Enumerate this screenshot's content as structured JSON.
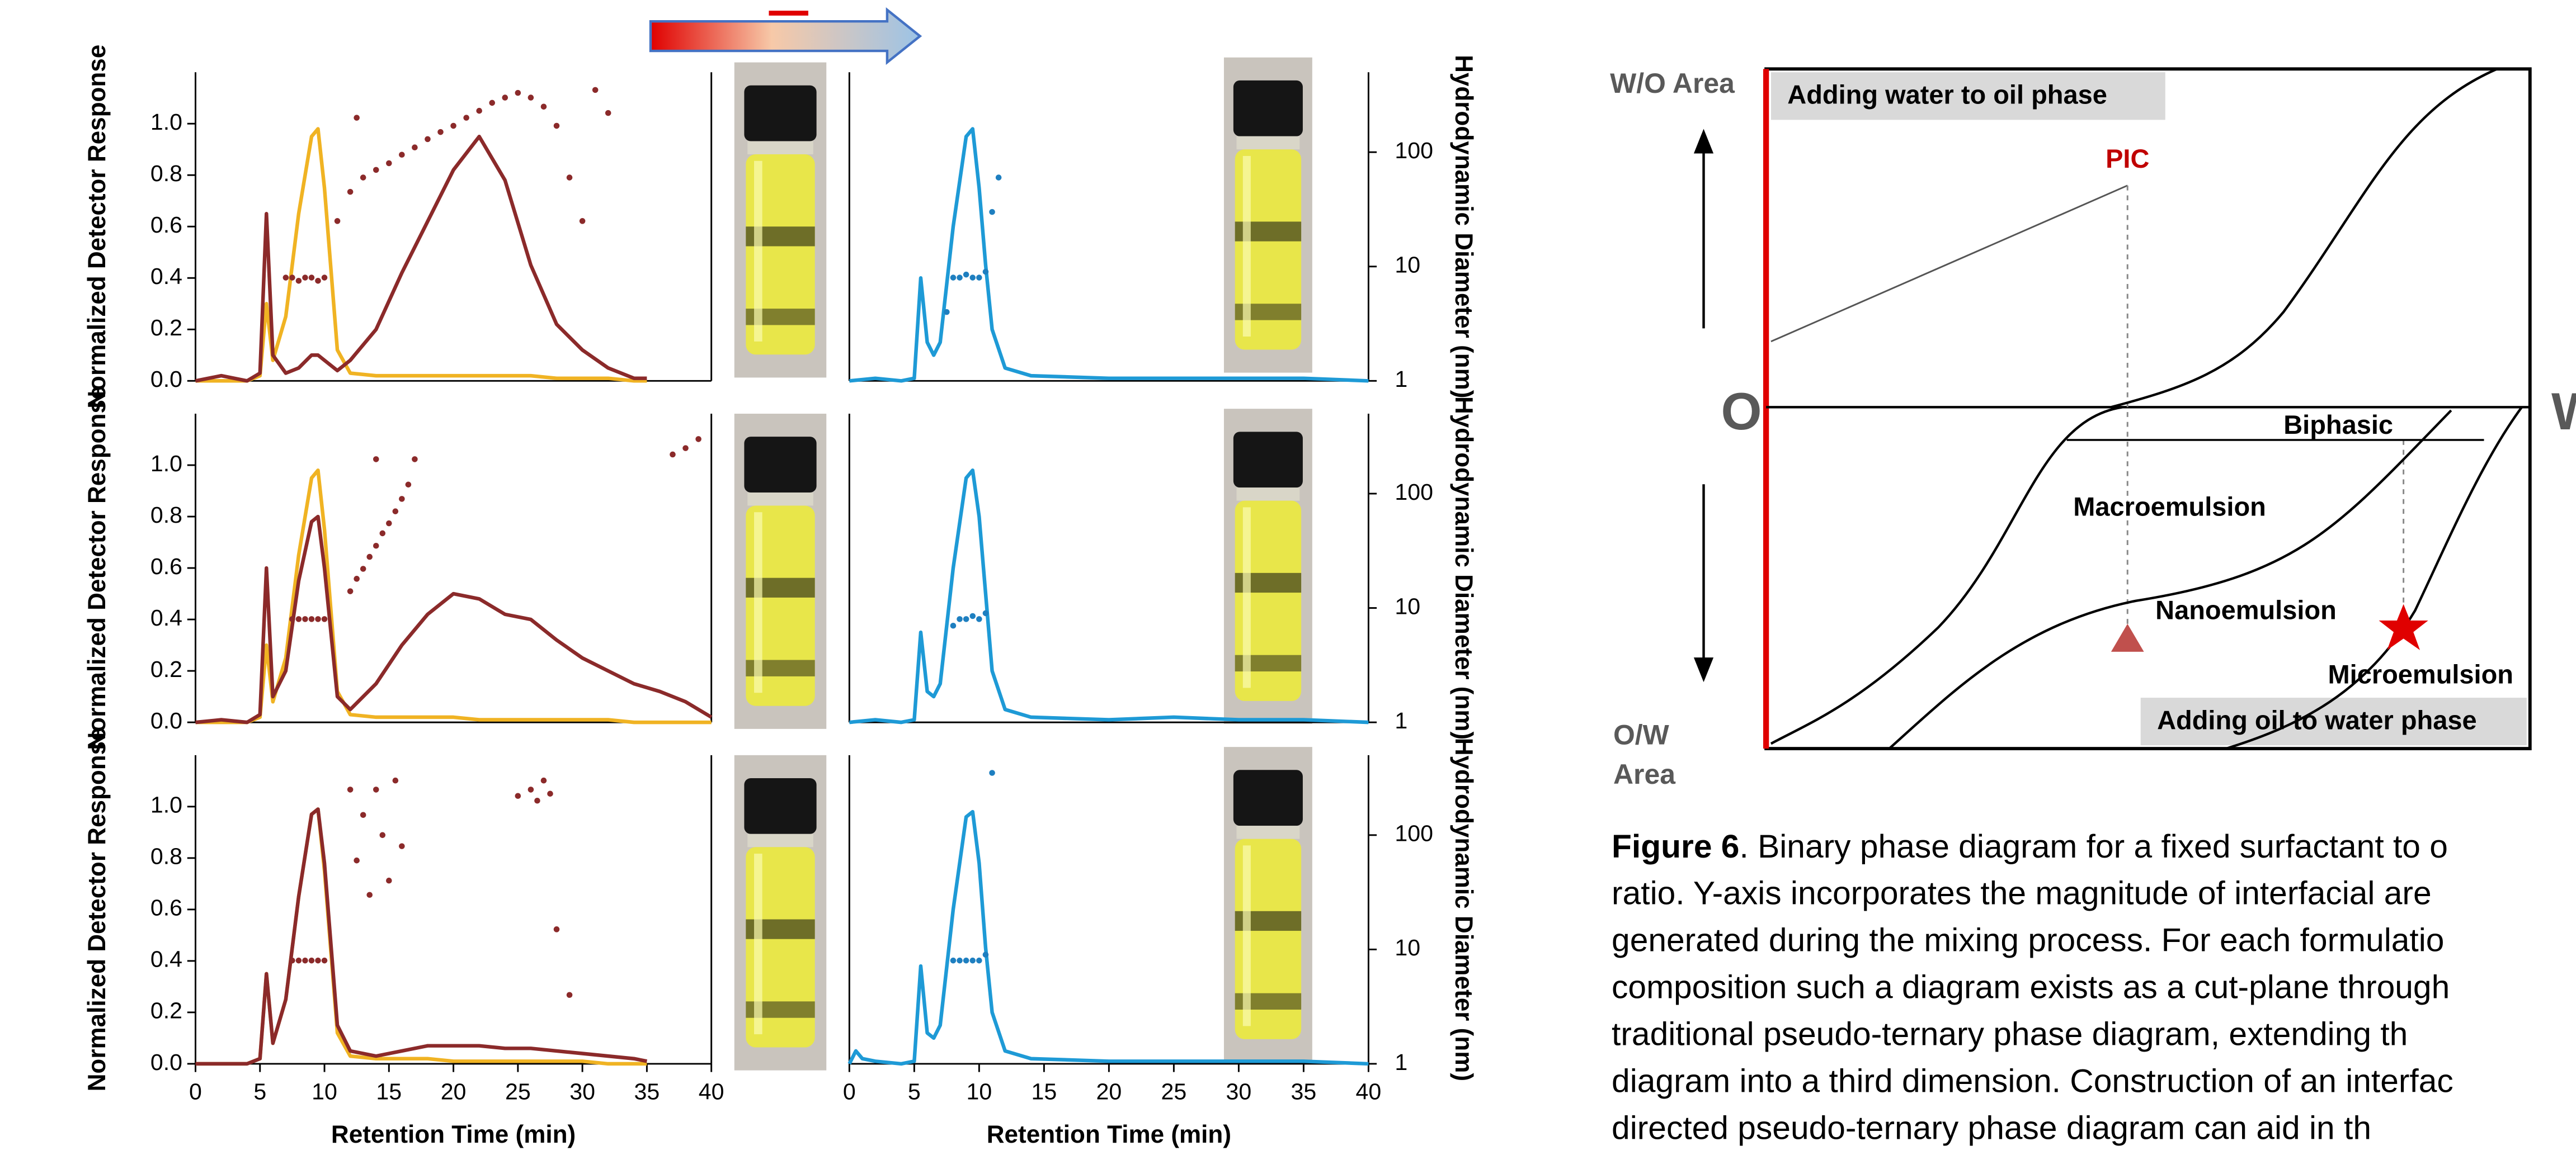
{
  "chart_data": [
    {
      "type": "line",
      "ylabel": "Normalized Detector Response",
      "xlim": [
        0,
        40
      ],
      "ylim": [
        0,
        1.2
      ],
      "yticks": [
        {
          "value": 0,
          "label": "0.0"
        },
        0.2,
        0.4,
        0.6,
        0.8,
        {
          "value": 1,
          "label": "1.0"
        }
      ],
      "y2lim": [
        1,
        500
      ],
      "y2log": true,
      "x": [
        0,
        2,
        4,
        5,
        5.5,
        6,
        7,
        8,
        9,
        9.5,
        10,
        11,
        12,
        14,
        16,
        18,
        20,
        22,
        24,
        26,
        28,
        30,
        32,
        34,
        35
      ],
      "series": [
        {
          "type": "line",
          "color": "#f0b323",
          "values": [
            0,
            0,
            0,
            0.02,
            0.3,
            0.08,
            0.25,
            0.65,
            0.95,
            0.98,
            0.75,
            0.12,
            0.03,
            0.02,
            0.02,
            0.02,
            0.02,
            0.02,
            0.02,
            0.02,
            0.01,
            0.01,
            0.01,
            0,
            0
          ]
        },
        {
          "type": "line",
          "color": "#8b2a2a",
          "values": [
            0,
            0.02,
            0,
            0.03,
            0.65,
            0.1,
            0.03,
            0.05,
            0.1,
            0.1,
            0.08,
            0.04,
            0.08,
            0.2,
            0.42,
            0.62,
            0.82,
            0.95,
            0.78,
            0.45,
            0.22,
            0.12,
            0.05,
            0.01,
            0.01
          ]
        },
        {
          "type": "scatter",
          "axis": "y2",
          "color": "#8b2a2a",
          "x": [
            7,
            7.5,
            8,
            8.5,
            9,
            9.5,
            10,
            11,
            12,
            12.5,
            13,
            14,
            15,
            16,
            17,
            18,
            19,
            20,
            21,
            22,
            23,
            24,
            25,
            26,
            27,
            28,
            29,
            30,
            31,
            32
          ],
          "values": [
            8,
            8,
            7.5,
            8,
            8,
            7.5,
            8,
            25,
            45,
            200,
            60,
            70,
            80,
            95,
            110,
            130,
            150,
            170,
            200,
            230,
            270,
            300,
            330,
            300,
            250,
            170,
            60,
            25,
            350,
            220
          ]
        }
      ]
    },
    {
      "type": "line",
      "y2label": "Hydrodynamic Diameter (nm)",
      "xlim": [
        0,
        40
      ],
      "ylim": [
        0,
        1.2
      ],
      "y2lim": [
        1,
        500
      ],
      "y2log": true,
      "y2ticks": [
        1,
        10,
        100
      ],
      "x": [
        0,
        2,
        4,
        5,
        5.5,
        6,
        6.5,
        7,
        8,
        9,
        9.5,
        10,
        10.5,
        11,
        12,
        14,
        20,
        25,
        30,
        35,
        40
      ],
      "series": [
        {
          "type": "line",
          "color": "#1e9ad6",
          "values": [
            0,
            0.01,
            0,
            0.01,
            0.4,
            0.15,
            0.1,
            0.15,
            0.6,
            0.95,
            0.98,
            0.75,
            0.45,
            0.2,
            0.05,
            0.02,
            0.01,
            0.01,
            0.01,
            0.01,
            0
          ]
        },
        {
          "type": "scatter",
          "axis": "y2",
          "color": "#1e7fc0",
          "x": [
            7.5,
            8,
            8.5,
            9,
            9.5,
            10,
            10.5,
            11,
            11.5
          ],
          "values": [
            4,
            8,
            8,
            8.5,
            8,
            8,
            9,
            30,
            60
          ]
        }
      ]
    },
    {
      "type": "line",
      "ylabel": "Normalized Detector Response",
      "xlim": [
        0,
        40
      ],
      "ylim": [
        0,
        1.2
      ],
      "yticks": [
        {
          "value": 0,
          "label": "0.0"
        },
        0.2,
        0.4,
        0.6,
        0.8,
        {
          "value": 1,
          "label": "1.0"
        }
      ],
      "y2lim": [
        1,
        500
      ],
      "y2log": true,
      "x": [
        0,
        2,
        4,
        5,
        5.5,
        6,
        7,
        8,
        9,
        9.5,
        10,
        11,
        12,
        14,
        16,
        18,
        20,
        22,
        24,
        26,
        28,
        30,
        32,
        34,
        36,
        38,
        40
      ],
      "series": [
        {
          "type": "line",
          "color": "#f0b323",
          "values": [
            0,
            0,
            0,
            0.02,
            0.3,
            0.08,
            0.25,
            0.65,
            0.95,
            0.98,
            0.75,
            0.12,
            0.03,
            0.02,
            0.02,
            0.02,
            0.02,
            0.01,
            0.01,
            0.01,
            0.01,
            0.01,
            0.01,
            0,
            0,
            0,
            0
          ]
        },
        {
          "type": "line",
          "color": "#8b2a2a",
          "values": [
            0,
            0.01,
            0,
            0.03,
            0.6,
            0.1,
            0.2,
            0.55,
            0.78,
            0.8,
            0.6,
            0.1,
            0.05,
            0.15,
            0.3,
            0.42,
            0.5,
            0.48,
            0.42,
            0.4,
            0.32,
            0.25,
            0.2,
            0.15,
            0.12,
            0.08,
            0.02
          ]
        },
        {
          "type": "scatter",
          "axis": "y2",
          "color": "#8b2a2a",
          "x": [
            7.5,
            8,
            8.5,
            9,
            9.5,
            10,
            12,
            12.5,
            13,
            13.5,
            14,
            14.5,
            15,
            15.5,
            16,
            16.5,
            17,
            14,
            37,
            38,
            39
          ],
          "values": [
            8,
            8,
            8,
            8,
            8,
            8,
            14,
            18,
            22,
            28,
            35,
            45,
            55,
            70,
            90,
            120,
            200,
            200,
            220,
            250,
            300
          ]
        }
      ]
    },
    {
      "type": "line",
      "y2label": "Hydrodynamic Diameter (nm)",
      "xlim": [
        0,
        40
      ],
      "ylim": [
        0,
        1.2
      ],
      "y2lim": [
        1,
        500
      ],
      "y2log": true,
      "y2ticks": [
        1,
        10,
        100
      ],
      "x": [
        0,
        2,
        4,
        5,
        5.5,
        6,
        6.5,
        7,
        8,
        9,
        9.5,
        10,
        10.5,
        11,
        12,
        14,
        20,
        25,
        30,
        35,
        40
      ],
      "series": [
        {
          "type": "line",
          "color": "#1e9ad6",
          "values": [
            0,
            0.01,
            0,
            0.01,
            0.35,
            0.12,
            0.1,
            0.15,
            0.6,
            0.95,
            0.98,
            0.8,
            0.5,
            0.2,
            0.05,
            0.02,
            0.01,
            0.02,
            0.01,
            0.01,
            0
          ]
        },
        {
          "type": "scatter",
          "axis": "y2",
          "color": "#1e7fc0",
          "x": [
            8,
            8.5,
            9,
            9.5,
            10,
            10.5
          ],
          "values": [
            7,
            8,
            8,
            8.5,
            8,
            9
          ]
        }
      ]
    },
    {
      "type": "line",
      "ylabel": "Normalized Detector Response",
      "xlabel": "Retention Time (min)",
      "xlim": [
        0,
        40
      ],
      "ylim": [
        0,
        1.2
      ],
      "xticks": [
        0,
        5,
        10,
        15,
        20,
        25,
        30,
        35,
        40
      ],
      "yticks": [
        {
          "value": 0,
          "label": "0.0"
        },
        0.2,
        0.4,
        0.6,
        0.8,
        {
          "value": 1,
          "label": "1.0"
        }
      ],
      "y2lim": [
        1,
        500
      ],
      "y2log": true,
      "x": [
        0,
        2,
        4,
        5,
        5.5,
        6,
        7,
        8,
        9,
        9.5,
        10,
        11,
        12,
        14,
        16,
        18,
        20,
        22,
        24,
        26,
        28,
        30,
        32,
        34,
        35
      ],
      "series": [
        {
          "type": "line",
          "color": "#f0b323",
          "values": [
            0,
            0,
            0,
            0.02,
            0.35,
            0.08,
            0.25,
            0.65,
            0.97,
            0.99,
            0.75,
            0.12,
            0.03,
            0.02,
            0.02,
            0.02,
            0.01,
            0.01,
            0.01,
            0.01,
            0.01,
            0.01,
            0,
            0,
            0
          ]
        },
        {
          "type": "line",
          "color": "#8b2a2a",
          "values": [
            0,
            0,
            0,
            0.02,
            0.35,
            0.08,
            0.25,
            0.65,
            0.97,
            0.99,
            0.78,
            0.15,
            0.05,
            0.03,
            0.05,
            0.07,
            0.07,
            0.07,
            0.06,
            0.06,
            0.05,
            0.04,
            0.03,
            0.02,
            0.01
          ]
        },
        {
          "type": "scatter",
          "axis": "y2",
          "color": "#8b2a2a",
          "x": [
            7.5,
            8,
            8.5,
            9,
            9.5,
            10,
            12,
            12.5,
            13,
            13.5,
            14,
            14.5,
            15,
            15.5,
            16,
            25,
            26,
            26.5,
            27,
            27.5,
            28,
            29
          ],
          "values": [
            8,
            8,
            8,
            8,
            8,
            8,
            250,
            60,
            150,
            30,
            250,
            100,
            40,
            300,
            80,
            220,
            250,
            200,
            300,
            230,
            15,
            4
          ]
        }
      ]
    },
    {
      "type": "line",
      "y2label": "Hydrodynamic Diameter (nm)",
      "xlabel": "Retention Time (min)",
      "xlim": [
        0,
        40
      ],
      "ylim": [
        0,
        1.2
      ],
      "xticks": [
        0,
        5,
        10,
        15,
        20,
        25,
        30,
        35,
        40
      ],
      "y2lim": [
        1,
        500
      ],
      "y2log": true,
      "y2ticks": [
        1,
        10,
        100
      ],
      "x": [
        0,
        0.5,
        1,
        2,
        4,
        5,
        5.5,
        6,
        6.5,
        7,
        8,
        9,
        9.5,
        10,
        10.5,
        11,
        12,
        14,
        20,
        25,
        30,
        35,
        40
      ],
      "series": [
        {
          "type": "line",
          "color": "#1e9ad6",
          "values": [
            0,
            0.05,
            0.02,
            0.01,
            0,
            0.01,
            0.38,
            0.12,
            0.1,
            0.15,
            0.6,
            0.96,
            0.98,
            0.78,
            0.45,
            0.2,
            0.05,
            0.02,
            0.01,
            0.01,
            0.01,
            0.01,
            0
          ]
        },
        {
          "type": "scatter",
          "axis": "y2",
          "color": "#1e7fc0",
          "x": [
            8,
            8.5,
            9,
            9.5,
            10,
            10.5,
            11
          ],
          "values": [
            8,
            8,
            8,
            8,
            8,
            9,
            350
          ]
        }
      ]
    }
  ],
  "diagram": {
    "wo_area": "W/O Area",
    "top_box": "Adding water to oil phase",
    "pic": "PIC",
    "o": "O",
    "w": "W",
    "biphasic": "Biphasic",
    "macro": "Macroemulsion",
    "nano": "Nanoemulsion",
    "micro": "Microemulsion",
    "ow_area": [
      "O/W",
      "Area"
    ],
    "bottom_box": "Adding oil to water phase"
  },
  "caption": {
    "label": "Figure 6",
    "lines": [
      ". Binary phase diagram for a fixed surfactant to o",
      "ratio. Y-axis incorporates the magnitude of interfacial are",
      "generated during the mixing process. For each formulatio",
      "composition such a diagram exists as a cut-plane through",
      "traditional pseudo-ternary phase diagram, extending th",
      "diagram into a third dimension. Construction of an interfac",
      "directed pseudo-ternary phase diagram can aid in th"
    ]
  }
}
